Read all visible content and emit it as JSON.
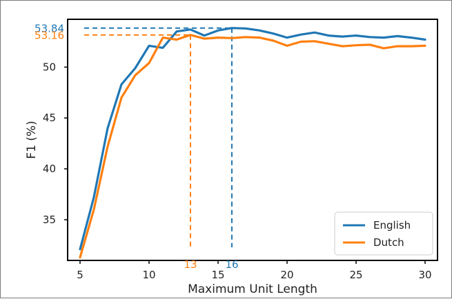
{
  "chart_data": {
    "type": "line",
    "title": "",
    "xlabel": "Maximum Unit Length",
    "ylabel": "F1 (%)",
    "xlim": [
      4.1,
      30.9
    ],
    "ylim": [
      31.0,
      54.7
    ],
    "xticks": [
      5,
      10,
      15,
      20,
      25,
      30
    ],
    "xtick_labels": [
      "5",
      "10",
      "15",
      "20",
      "25",
      "30"
    ],
    "yticks": [
      35,
      40,
      45,
      50
    ],
    "ytick_labels": [
      "35",
      "40",
      "45",
      "50"
    ],
    "grid": false,
    "legend_position": "lower-right",
    "x": [
      5,
      6,
      7,
      8,
      9,
      10,
      11,
      12,
      13,
      14,
      15,
      16,
      17,
      18,
      19,
      20,
      21,
      22,
      23,
      24,
      25,
      26,
      27,
      28,
      29,
      30
    ],
    "series": [
      {
        "name": "English",
        "color": "#1f77b4",
        "values": [
          32.1,
          37.2,
          44.0,
          48.3,
          49.9,
          52.1,
          51.9,
          53.5,
          53.7,
          53.1,
          53.6,
          53.84,
          53.8,
          53.6,
          53.3,
          52.9,
          53.2,
          53.4,
          53.1,
          53.0,
          53.1,
          52.95,
          52.9,
          53.05,
          52.9,
          52.7
        ]
      },
      {
        "name": "Dutch",
        "color": "#ff7f0e",
        "values": [
          31.3,
          36.0,
          42.2,
          47.0,
          49.2,
          50.4,
          52.9,
          52.7,
          53.16,
          52.8,
          52.9,
          52.85,
          52.95,
          52.9,
          52.6,
          52.1,
          52.5,
          52.55,
          52.3,
          52.05,
          52.15,
          52.2,
          51.85,
          52.05,
          52.05,
          52.1
        ]
      }
    ],
    "annotations": [
      {
        "series": "English",
        "x": 16,
        "y": 53.84,
        "y_label": "53.84",
        "x_label": "16",
        "color": "#1f77b4"
      },
      {
        "series": "Dutch",
        "x": 13,
        "y": 53.16,
        "y_label": "53.16",
        "x_label": "13",
        "color": "#ff7f0e"
      }
    ]
  }
}
